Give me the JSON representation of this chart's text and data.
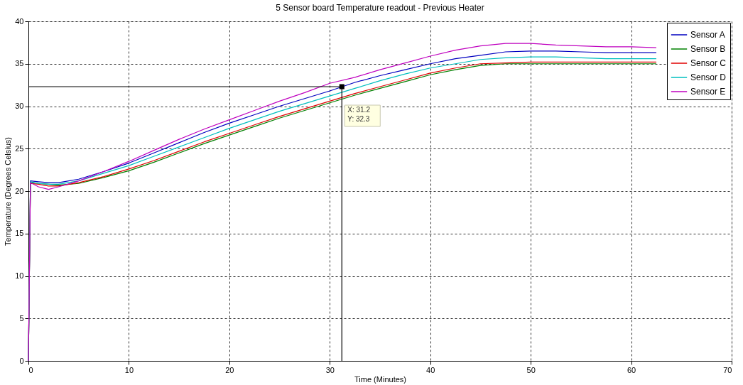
{
  "chart_data": {
    "type": "line",
    "title": "5 Sensor board Temperature readout - Previous Heater",
    "xlabel": "Time (Minutes)",
    "ylabel": "Temperature (Degrees Celsius)",
    "x": [
      0,
      0.2,
      1,
      2,
      3,
      5,
      7.5,
      10,
      12.5,
      15,
      17.5,
      20,
      22.5,
      25,
      27.5,
      30,
      32.5,
      35,
      37.5,
      40,
      42.5,
      45,
      47.5,
      50,
      52.5,
      55,
      57.5,
      60,
      62.5
    ],
    "series": [
      {
        "name": "Sensor A",
        "color": "#0000c0",
        "values": [
          0,
          21.2,
          21.1,
          21.0,
          21.0,
          21.4,
          22.3,
          23.3,
          24.5,
          25.7,
          26.9,
          28.0,
          29.0,
          30.0,
          30.9,
          31.8,
          32.8,
          33.6,
          34.3,
          35.0,
          35.6,
          36.0,
          36.4,
          36.5,
          36.5,
          36.4,
          36.3,
          36.3,
          36.3
        ]
      },
      {
        "name": "Sensor B",
        "color": "#008000",
        "values": [
          0,
          21.0,
          20.9,
          20.8,
          20.7,
          20.9,
          21.6,
          22.4,
          23.4,
          24.5,
          25.6,
          26.6,
          27.6,
          28.6,
          29.5,
          30.4,
          31.3,
          32.1,
          32.9,
          33.7,
          34.3,
          34.8,
          35.0,
          35.0,
          35.0,
          35.0,
          35.0,
          35.0,
          35.0
        ]
      },
      {
        "name": "Sensor C",
        "color": "#e00000",
        "values": [
          0,
          20.9,
          20.8,
          20.6,
          20.6,
          21.0,
          21.7,
          22.6,
          23.6,
          24.7,
          25.8,
          26.8,
          27.8,
          28.8,
          29.7,
          30.6,
          31.5,
          32.3,
          33.1,
          33.9,
          34.5,
          35.0,
          35.1,
          35.2,
          35.2,
          35.2,
          35.2,
          35.2,
          35.2
        ]
      },
      {
        "name": "Sensor D",
        "color": "#00bfbf",
        "values": [
          0,
          21.1,
          20.9,
          20.8,
          20.8,
          21.2,
          22.1,
          23.0,
          24.1,
          25.2,
          26.3,
          27.4,
          28.4,
          29.4,
          30.3,
          31.2,
          32.1,
          33.0,
          33.8,
          34.5,
          35.0,
          35.5,
          35.7,
          35.8,
          35.8,
          35.7,
          35.6,
          35.6,
          35.6
        ]
      },
      {
        "name": "Sensor E",
        "color": "#bf00bf",
        "values": [
          0,
          21.0,
          20.5,
          20.2,
          20.5,
          21.2,
          22.3,
          23.5,
          24.8,
          26.1,
          27.3,
          28.4,
          29.5,
          30.6,
          31.6,
          32.7,
          33.4,
          34.3,
          35.1,
          35.9,
          36.6,
          37.1,
          37.4,
          37.4,
          37.2,
          37.1,
          37.0,
          37.0,
          36.9
        ]
      }
    ],
    "xlim": [
      0,
      70
    ],
    "xticks": [
      0,
      10,
      20,
      30,
      40,
      50,
      60,
      70
    ],
    "ylim": [
      0,
      40
    ],
    "yticks": [
      0,
      5,
      10,
      15,
      20,
      25,
      30,
      35,
      40
    ],
    "grid": true,
    "legend": "top right",
    "line_style": "solid",
    "marker": "none",
    "ref_lines": [
      {
        "axis": "x",
        "value": 31.2,
        "color": "#000000"
      },
      {
        "axis": "y",
        "value": 32.3,
        "color": "#000000"
      }
    ],
    "annotations": [
      {
        "text": "X: 31.2\nY: 32.3",
        "x": 31.2,
        "y": 32.3
      }
    ]
  }
}
